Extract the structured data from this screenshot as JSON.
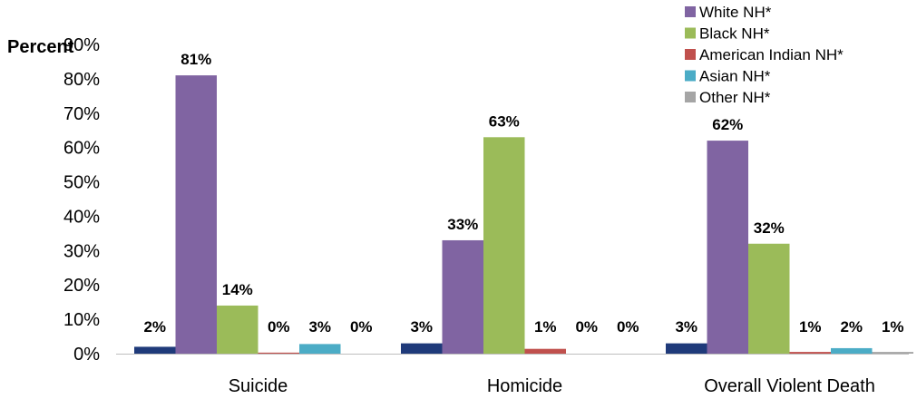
{
  "chart_data": {
    "type": "bar",
    "ylabel": "Percent",
    "ylim": [
      0,
      90
    ],
    "yticks": [
      "0%",
      "10%",
      "20%",
      "30%",
      "40%",
      "50%",
      "60%",
      "70%",
      "80%",
      "90%"
    ],
    "categories": [
      "Suicide",
      "Homicide",
      "Overall Violent Death"
    ],
    "series": [
      {
        "values": [
          2,
          3,
          3
        ],
        "labels": [
          "2%",
          "3%",
          "3%"
        ],
        "color": "#1f3a7a"
      },
      {
        "name": "White NH*",
        "values": [
          81,
          33,
          62
        ],
        "labels": [
          "81%",
          "33%",
          "62%"
        ],
        "color": "#8064a2"
      },
      {
        "name": "Black NH*",
        "values": [
          14,
          63,
          32
        ],
        "labels": [
          "14%",
          "63%",
          "32%"
        ],
        "color": "#9bbb59"
      },
      {
        "name": "American Indian NH*",
        "values": [
          0.3,
          1.4,
          0.5
        ],
        "labels": [
          "0%",
          "1%",
          "1%"
        ],
        "color": "#c0504d"
      },
      {
        "name": "Asian NH*",
        "values": [
          2.8,
          0,
          1.6
        ],
        "labels": [
          "3%",
          "0%",
          "2%"
        ],
        "color": "#4bacc6"
      },
      {
        "name": "Other NH*",
        "values": [
          0,
          0,
          0.5
        ],
        "labels": [
          "0%",
          "0%",
          "1%"
        ],
        "color": "#a5a5a5"
      }
    ],
    "legend_position": "top-right",
    "grid": false
  }
}
